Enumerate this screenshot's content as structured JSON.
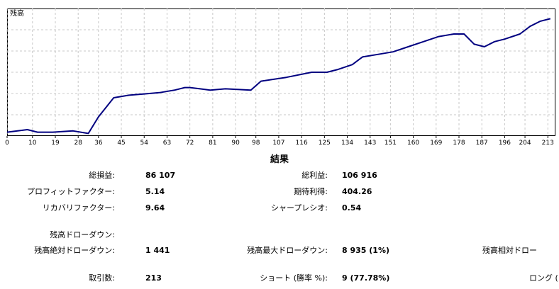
{
  "chart_data": {
    "type": "line",
    "series": [
      {
        "name": "残高",
        "x": [
          0,
          8,
          12,
          18,
          26,
          32,
          36,
          42,
          48,
          54,
          60,
          66,
          70,
          72,
          76,
          80,
          86,
          96,
          100,
          110,
          120,
          126,
          130,
          136,
          140,
          146,
          152,
          158,
          164,
          170,
          176,
          180,
          184,
          188,
          192,
          196,
          202,
          206,
          210,
          214
        ],
        "y": [
          3,
          5,
          3,
          3,
          4,
          2,
          15,
          30,
          32,
          33,
          34,
          36,
          38,
          38,
          37,
          36,
          37,
          36,
          43,
          46,
          50,
          50,
          52,
          56,
          62,
          64,
          66,
          70,
          74,
          78,
          80,
          80,
          72,
          70,
          74,
          76,
          80,
          86,
          90,
          92
        ]
      }
    ],
    "xticks": [
      "0",
      "10",
      "19",
      "28",
      "36",
      "45",
      "54",
      "63",
      "72",
      "81",
      "90",
      "98",
      "107",
      "116",
      "125",
      "134",
      "143",
      "151",
      "160",
      "169",
      "178",
      "187",
      "196",
      "204",
      "213"
    ],
    "xlim": [
      0,
      216
    ],
    "ylim": [
      0,
      100
    ],
    "grid": true,
    "legend": "top-left",
    "line_color": "#000080"
  },
  "section_title": "結果",
  "stats": {
    "total_profit_label": "総損益:",
    "total_profit_value": "86 107",
    "gross_profit_label": "総利益:",
    "gross_profit_value": "106 916",
    "profit_factor_label": "プロフィットファクター:",
    "profit_factor_value": "5.14",
    "expected_payoff_label": "期待利得:",
    "expected_payoff_value": "404.26",
    "recovery_factor_label": "リカバリファクター:",
    "recovery_factor_value": "9.64",
    "sharpe_label": "シャープレシオ:",
    "sharpe_value": "0.54",
    "balance_drawdown_label": "残高ドローダウン:",
    "abs_drawdown_label": "残高絶対ドローダウン:",
    "abs_drawdown_value": "1 441",
    "max_drawdown_label": "残高最大ドローダウン:",
    "max_drawdown_value": "8 935 (1%)",
    "rel_drawdown_label": "残高相対ドロー",
    "trades_label": "取引数:",
    "trades_value": "213",
    "short_label": "ショート (勝率 %):",
    "short_value": "9 (77.78%)",
    "long_label": "ロング ("
  }
}
